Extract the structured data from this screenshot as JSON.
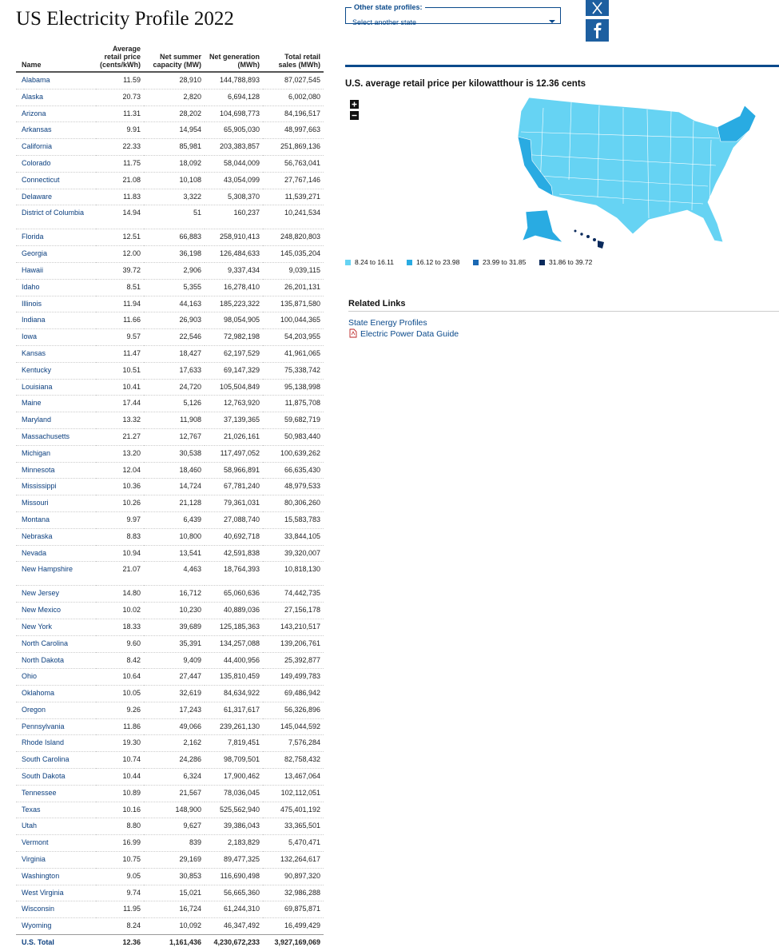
{
  "header": {
    "title": "US Electricity Profile 2022"
  },
  "state_selector": {
    "label": "Other state profiles:",
    "placeholder": "Select another state"
  },
  "table": {
    "columns": [
      "Name",
      "Average retail price (cents/kWh)",
      "Net summer capacity (MW)",
      "Net generation (MWh)",
      "Total retail sales (MWh)"
    ],
    "rows": [
      [
        "Alabama",
        "11.59",
        "28,910",
        "144,788,893",
        "87,027,545"
      ],
      [
        "Alaska",
        "20.73",
        "2,820",
        "6,694,128",
        "6,002,080"
      ],
      [
        "Arizona",
        "11.31",
        "28,202",
        "104,698,773",
        "84,196,517"
      ],
      [
        "Arkansas",
        "9.91",
        "14,954",
        "65,905,030",
        "48,997,663"
      ],
      [
        "California",
        "22.33",
        "85,981",
        "203,383,857",
        "251,869,136"
      ],
      [
        "Colorado",
        "11.75",
        "18,092",
        "58,044,009",
        "56,763,041"
      ],
      [
        "Connecticut",
        "21.08",
        "10,108",
        "43,054,099",
        "27,767,146"
      ],
      [
        "Delaware",
        "11.83",
        "3,322",
        "5,308,370",
        "11,539,271"
      ],
      [
        "District of Columbia",
        "14.94",
        "51",
        "160,237",
        "10,241,534"
      ],
      [
        "Florida",
        "12.51",
        "66,883",
        "258,910,413",
        "248,820,803"
      ],
      [
        "Georgia",
        "12.00",
        "36,198",
        "126,484,633",
        "145,035,204"
      ],
      [
        "Hawaii",
        "39.72",
        "2,906",
        "9,337,434",
        "9,039,115"
      ],
      [
        "Idaho",
        "8.51",
        "5,355",
        "16,278,410",
        "26,201,131"
      ],
      [
        "Illinois",
        "11.94",
        "44,163",
        "185,223,322",
        "135,871,580"
      ],
      [
        "Indiana",
        "11.66",
        "26,903",
        "98,054,905",
        "100,044,365"
      ],
      [
        "Iowa",
        "9.57",
        "22,546",
        "72,982,198",
        "54,203,955"
      ],
      [
        "Kansas",
        "11.47",
        "18,427",
        "62,197,529",
        "41,961,065"
      ],
      [
        "Kentucky",
        "10.51",
        "17,633",
        "69,147,329",
        "75,338,742"
      ],
      [
        "Louisiana",
        "10.41",
        "24,720",
        "105,504,849",
        "95,138,998"
      ],
      [
        "Maine",
        "17.44",
        "5,126",
        "12,763,920",
        "11,875,708"
      ],
      [
        "Maryland",
        "13.32",
        "11,908",
        "37,139,365",
        "59,682,719"
      ],
      [
        "Massachusetts",
        "21.27",
        "12,767",
        "21,026,161",
        "50,983,440"
      ],
      [
        "Michigan",
        "13.20",
        "30,538",
        "117,497,052",
        "100,639,262"
      ],
      [
        "Minnesota",
        "12.04",
        "18,460",
        "58,966,891",
        "66,635,430"
      ],
      [
        "Mississippi",
        "10.36",
        "14,724",
        "67,781,240",
        "48,979,533"
      ],
      [
        "Missouri",
        "10.26",
        "21,128",
        "79,361,031",
        "80,306,260"
      ],
      [
        "Montana",
        "9.97",
        "6,439",
        "27,088,740",
        "15,583,783"
      ],
      [
        "Nebraska",
        "8.83",
        "10,800",
        "40,692,718",
        "33,844,105"
      ],
      [
        "Nevada",
        "10.94",
        "13,541",
        "42,591,838",
        "39,320,007"
      ],
      [
        "New Hampshire",
        "21.07",
        "4,463",
        "18,764,393",
        "10,818,130"
      ],
      [
        "New Jersey",
        "14.80",
        "16,712",
        "65,060,636",
        "74,442,735"
      ],
      [
        "New Mexico",
        "10.02",
        "10,230",
        "40,889,036",
        "27,156,178"
      ],
      [
        "New York",
        "18.33",
        "39,689",
        "125,185,363",
        "143,210,517"
      ],
      [
        "North Carolina",
        "9.60",
        "35,391",
        "134,257,088",
        "139,206,761"
      ],
      [
        "North Dakota",
        "8.42",
        "9,409",
        "44,400,956",
        "25,392,877"
      ],
      [
        "Ohio",
        "10.64",
        "27,447",
        "135,810,459",
        "149,499,783"
      ],
      [
        "Oklahoma",
        "10.05",
        "32,619",
        "84,634,922",
        "69,486,942"
      ],
      [
        "Oregon",
        "9.26",
        "17,243",
        "61,317,617",
        "56,326,896"
      ],
      [
        "Pennsylvania",
        "11.86",
        "49,066",
        "239,261,130",
        "145,044,592"
      ],
      [
        "Rhode Island",
        "19.30",
        "2,162",
        "7,819,451",
        "7,576,284"
      ],
      [
        "South Carolina",
        "10.74",
        "24,286",
        "98,709,501",
        "82,758,432"
      ],
      [
        "South Dakota",
        "10.44",
        "6,324",
        "17,900,462",
        "13,467,064"
      ],
      [
        "Tennessee",
        "10.89",
        "21,567",
        "78,036,045",
        "102,112,051"
      ],
      [
        "Texas",
        "10.16",
        "148,900",
        "525,562,940",
        "475,401,192"
      ],
      [
        "Utah",
        "8.80",
        "9,627",
        "39,386,043",
        "33,365,501"
      ],
      [
        "Vermont",
        "16.99",
        "839",
        "2,183,829",
        "5,470,471"
      ],
      [
        "Virginia",
        "10.75",
        "29,169",
        "89,477,325",
        "132,264,617"
      ],
      [
        "Washington",
        "9.05",
        "30,853",
        "116,690,498",
        "90,897,320"
      ],
      [
        "West Virginia",
        "9.74",
        "15,021",
        "56,665,360",
        "32,986,288"
      ],
      [
        "Wisconsin",
        "11.95",
        "16,724",
        "61,244,310",
        "69,875,871"
      ],
      [
        "Wyoming",
        "8.24",
        "10,092",
        "46,347,492",
        "16,499,429"
      ]
    ],
    "total": [
      "U.S. Total",
      "12.36",
      "1,161,436",
      "4,230,672,233",
      "3,927,169,069"
    ]
  },
  "map": {
    "title": "U.S. average retail price per kilowatthour is 12.36 cents",
    "legend": [
      "8.24 to 16.11",
      "16.12 to 23.98",
      "23.99 to 31.85",
      "31.86 to 39.72"
    ]
  },
  "related_links": {
    "title": "Related Links",
    "links": [
      "State Energy Profiles",
      "Electric Power Data Guide"
    ]
  }
}
